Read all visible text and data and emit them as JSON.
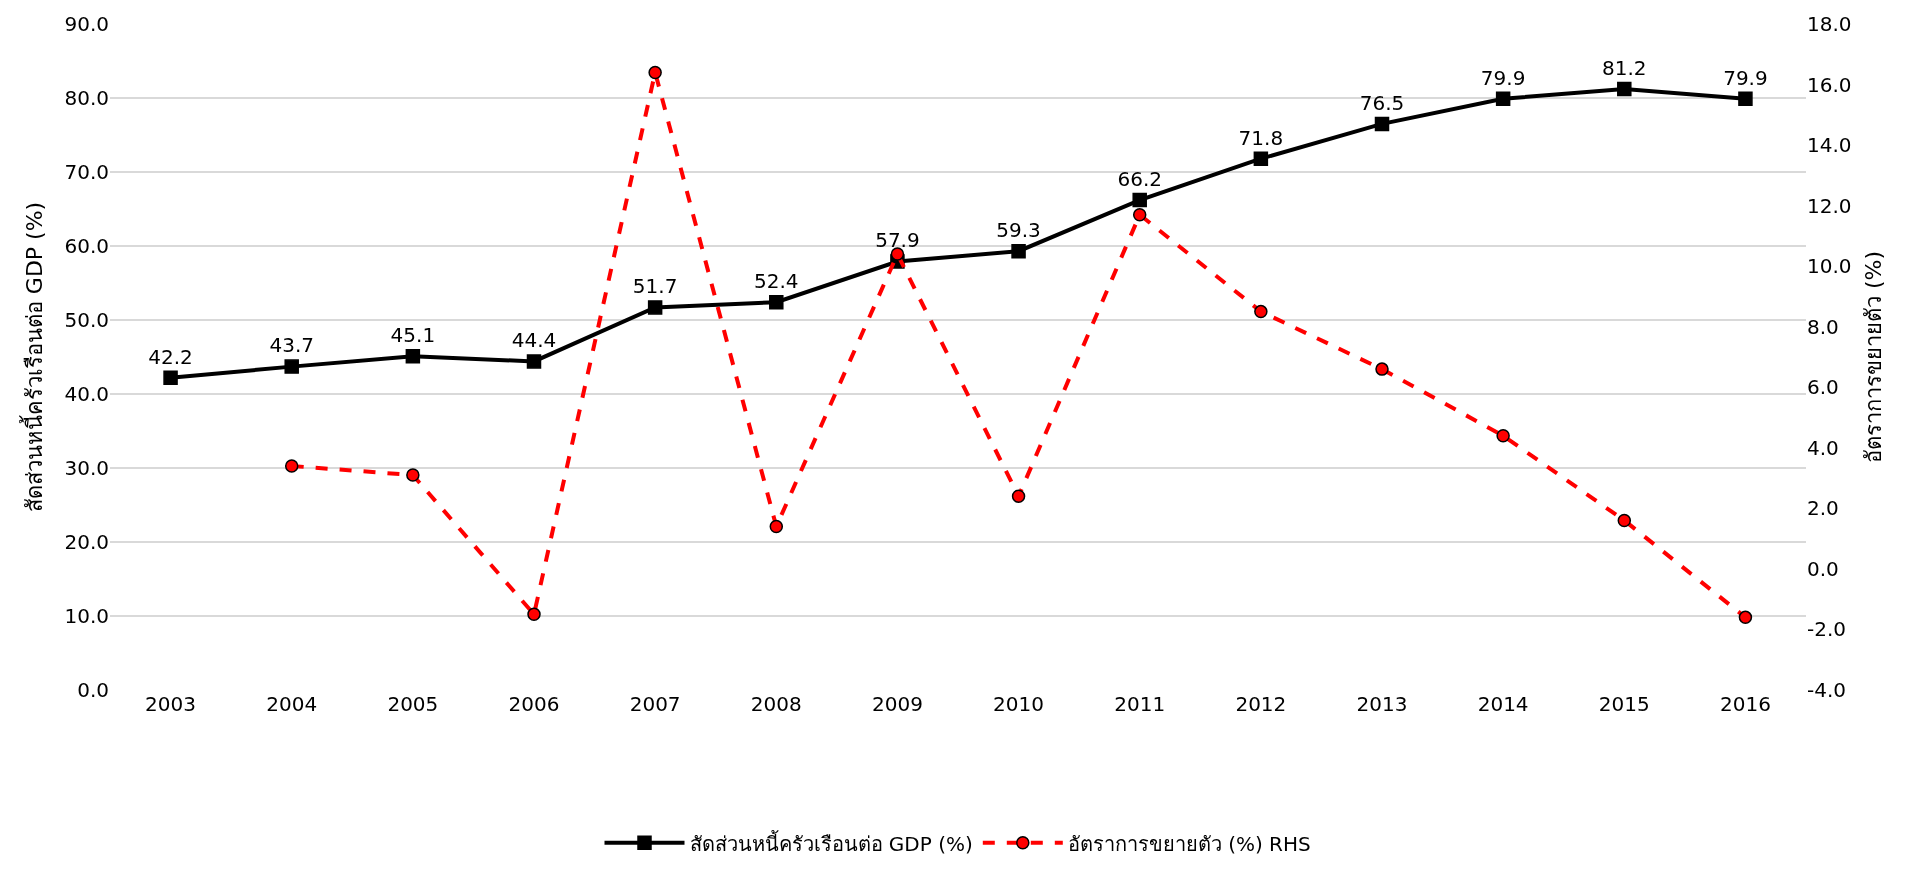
{
  "chart_data": {
    "type": "line",
    "categories": [
      "2003",
      "2004",
      "2005",
      "2006",
      "2007",
      "2008",
      "2009",
      "2010",
      "2011",
      "2012",
      "2013",
      "2014",
      "2015",
      "2016"
    ],
    "ylabel": "สัดส่วนหนี้ครัวเรือนต่อ GDP (%)",
    "y2label": "อัตราการขยายตัว (%)",
    "ylim": [
      0,
      90
    ],
    "yticks": [
      {
        "value": 0,
        "label": "0.0"
      },
      {
        "value": 10,
        "label": "10.0"
      },
      {
        "value": 20,
        "label": "20.0"
      },
      {
        "value": 30,
        "label": "30.0"
      },
      {
        "value": 40,
        "label": "40.0"
      },
      {
        "value": 50,
        "label": "50.0"
      },
      {
        "value": 60,
        "label": "60.0"
      },
      {
        "value": 70,
        "label": "70.0"
      },
      {
        "value": 80,
        "label": "80.0"
      },
      {
        "value": 90,
        "label": "90.0"
      }
    ],
    "y2lim": [
      -4,
      18
    ],
    "y2ticks": [
      {
        "value": -4,
        "label": "-4.0"
      },
      {
        "value": -2,
        "label": "-2.0"
      },
      {
        "value": 0,
        "label": "0.0"
      },
      {
        "value": 2,
        "label": "2.0"
      },
      {
        "value": 4,
        "label": "4.0"
      },
      {
        "value": 6,
        "label": "6.0"
      },
      {
        "value": 8,
        "label": "8.0"
      },
      {
        "value": 10,
        "label": "10.0"
      },
      {
        "value": 12,
        "label": "12.0"
      },
      {
        "value": 14,
        "label": "14.0"
      },
      {
        "value": 16,
        "label": "16.0"
      },
      {
        "value": 18,
        "label": "18.0"
      }
    ],
    "grid": "y",
    "legend": "bottom",
    "series": [
      {
        "name": "สัดส่วนหนี้ครัวเรือนต่อ GDP (%)",
        "color": "#000000",
        "marker": "square",
        "line_style": "solid",
        "values": [
          42.2,
          43.7,
          45.1,
          44.4,
          51.7,
          52.4,
          57.9,
          59.3,
          66.2,
          71.8,
          76.5,
          79.9,
          81.2,
          79.9
        ],
        "value_labels": [
          "42.2",
          "43.7",
          "45.1",
          "44.4",
          "51.7",
          "52.4",
          "57.9",
          "59.3",
          "66.2",
          "71.8",
          "76.5",
          "79.9",
          "81.2",
          "79.9"
        ]
      },
      {
        "name": "อัตราการขยายตัว (%) RHS",
        "color": "#ff0000",
        "marker": "circle",
        "line_style": "dashed",
        "axis": "y2",
        "values": [
          null,
          3.4,
          3.1,
          -1.5,
          16.4,
          1.4,
          10.4,
          2.4,
          11.7,
          8.5,
          6.6,
          4.4,
          1.6,
          -1.6
        ]
      }
    ]
  }
}
